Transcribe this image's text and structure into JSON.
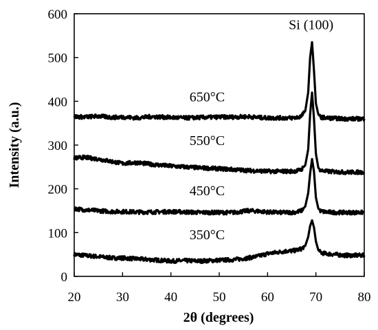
{
  "chart_data": {
    "type": "line",
    "title": "",
    "xlabel": "2θ (degrees)",
    "ylabel": "Intensity (a.u.)",
    "xlim": [
      20,
      80
    ],
    "ylim": [
      0,
      600
    ],
    "xticks": [
      20,
      30,
      40,
      50,
      60,
      70,
      80
    ],
    "yticks": [
      0,
      100,
      200,
      300,
      400,
      500,
      600
    ],
    "grid": false,
    "legend": "none",
    "line_color": "#000000",
    "peak_label": "Si (100)",
    "series": [
      {
        "name": "350°C",
        "x": [
          20,
          22,
          25,
          28,
          30,
          33,
          36,
          40,
          43,
          46,
          50,
          53,
          56,
          58,
          60,
          62,
          64,
          65,
          66,
          67,
          67.8,
          68.4,
          68.8,
          69.2,
          69.6,
          70.0,
          70.5,
          71.0,
          72,
          74,
          76,
          78,
          80
        ],
        "y": [
          50,
          48,
          45,
          42,
          42,
          40,
          38,
          35,
          36,
          35,
          37,
          38,
          42,
          46,
          52,
          55,
          58,
          58,
          60,
          63,
          70,
          90,
          115,
          128,
          112,
          80,
          60,
          54,
          52,
          50,
          48,
          48,
          48
        ]
      },
      {
        "name": "450°C",
        "x": [
          20,
          22,
          25,
          28,
          30,
          33,
          36,
          40,
          43,
          46,
          50,
          53,
          56,
          58,
          60,
          62,
          64,
          65,
          66,
          67,
          67.8,
          68.4,
          68.8,
          69.2,
          69.6,
          70.0,
          70.5,
          71.0,
          72,
          74,
          76,
          78,
          80
        ],
        "y": [
          155,
          152,
          150,
          148,
          148,
          147,
          147,
          148,
          147,
          146,
          146,
          146,
          150,
          149,
          147,
          146,
          146,
          146,
          147,
          150,
          160,
          190,
          235,
          268,
          240,
          180,
          155,
          149,
          147,
          146,
          146,
          146,
          146
        ]
      },
      {
        "name": "550°C",
        "x": [
          20,
          22,
          25,
          28,
          30,
          33,
          36,
          40,
          43,
          46,
          50,
          53,
          56,
          58,
          60,
          62,
          64,
          65,
          66,
          67,
          67.8,
          68.4,
          68.8,
          69.2,
          69.6,
          70.0,
          70.5,
          71.0,
          72,
          74,
          76,
          78,
          80
        ],
        "y": [
          270,
          272,
          268,
          262,
          258,
          260,
          256,
          252,
          250,
          248,
          246,
          244,
          242,
          241,
          240,
          240,
          240,
          240,
          241,
          244,
          254,
          290,
          370,
          420,
          360,
          280,
          248,
          242,
          240,
          239,
          238,
          238,
          238
        ]
      },
      {
        "name": "650°C",
        "x": [
          20,
          22,
          25,
          28,
          30,
          33,
          36,
          40,
          43,
          46,
          50,
          53,
          56,
          58,
          60,
          62,
          64,
          65,
          66,
          67,
          67.8,
          68.4,
          68.8,
          69.2,
          69.6,
          70.0,
          70.5,
          71.0,
          72,
          74,
          76,
          78,
          80
        ],
        "y": [
          365,
          364,
          366,
          363,
          364,
          362,
          365,
          363,
          362,
          363,
          364,
          364,
          365,
          363,
          362,
          362,
          362,
          362,
          363,
          366,
          378,
          420,
          500,
          535,
          470,
          395,
          370,
          364,
          362,
          361,
          360,
          360,
          360
        ]
      }
    ]
  },
  "series_labels": [
    {
      "text": "650°C",
      "x": 47.5,
      "y": 400
    },
    {
      "text": "550°C",
      "x": 47.5,
      "y": 300
    },
    {
      "text": "450°C",
      "x": 47.5,
      "y": 185
    },
    {
      "text": "350°C",
      "x": 47.5,
      "y": 85
    }
  ],
  "peak_annotation": {
    "text": "Si (100)",
    "x": 69,
    "y": 565
  }
}
